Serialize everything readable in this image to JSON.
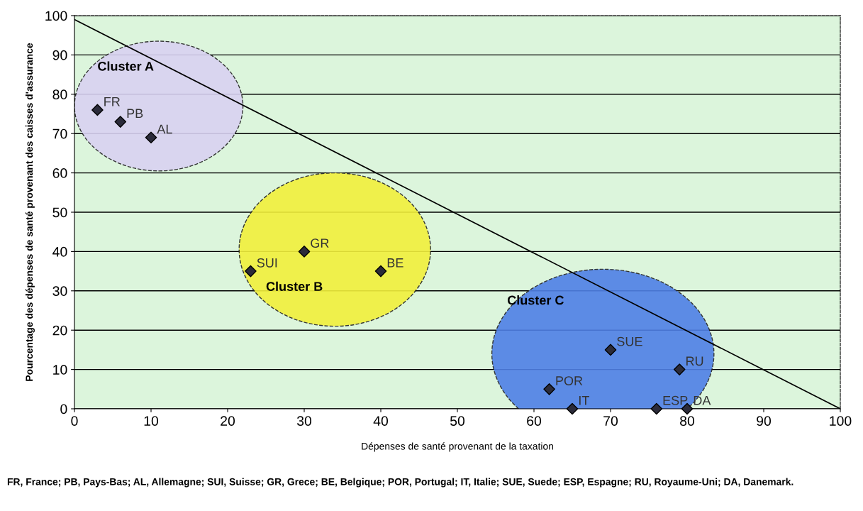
{
  "chart_data": {
    "type": "scatter",
    "xlabel": "Dépenses de santé provenant de la taxation",
    "ylabel": "Pourcentage des dépenses de santé provenant des caisses d'assurance",
    "xlim": [
      0,
      100
    ],
    "ylim": [
      0,
      100
    ],
    "xticks": [
      0,
      10,
      20,
      30,
      40,
      50,
      60,
      70,
      80,
      90,
      100
    ],
    "yticks": [
      0,
      10,
      20,
      30,
      40,
      50,
      60,
      70,
      80,
      90,
      100
    ],
    "grid": "y",
    "legend": false,
    "series": [
      {
        "marker": "diamond",
        "color": "#2b2b3a",
        "x": [
          3,
          6,
          10,
          23,
          30,
          40,
          62,
          65,
          70,
          76,
          79,
          80
        ],
        "values": [
          76,
          73,
          69,
          35,
          40,
          35,
          5,
          0,
          15,
          0,
          10,
          0
        ],
        "value_labels": [
          "FR",
          "PB",
          "AL",
          "SUI",
          "GR",
          "BE",
          "POR",
          "IT",
          "SUE",
          "ESP",
          "RU",
          "DA"
        ]
      },
      {
        "type": "line",
        "color": "#000000",
        "x": [
          0,
          100
        ],
        "values": [
          99,
          0
        ]
      }
    ],
    "annotations": [
      "Cluster A",
      "Cluster B",
      "Cluster C",
      "FR, France; PB, Pays-Bas; AL, Allemagne; SUI, Suisse; GR, Grece; BE, Belgique; POR, Portugal; IT, Italie; SUE, Suede; ESP, Espagne; RU, Royaume-Uni; DA, Danemark."
    ]
  }
}
